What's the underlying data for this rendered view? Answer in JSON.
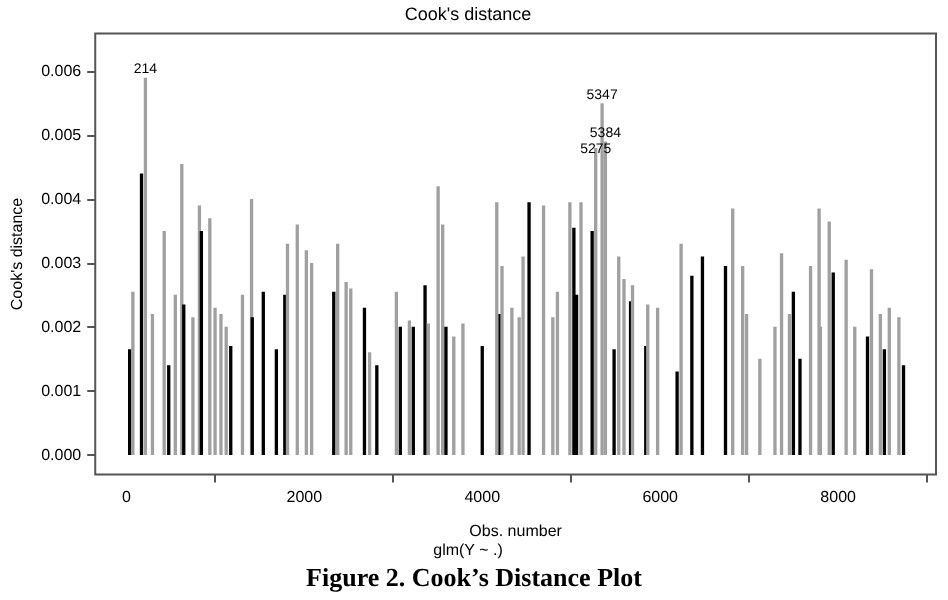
{
  "chart_data": {
    "type": "bar",
    "title": "Cook's distance",
    "subtitle": "glm(Y ~ .)",
    "xlabel": "Obs. number",
    "ylabel": "Cook's distance",
    "x": [
      37,
      73,
      170,
      214,
      293,
      425,
      476,
      550,
      623,
      645,
      748,
      821,
      843,
      938,
      997,
      1063,
      1122,
      1173,
      1305,
      1407,
      1415,
      1539,
      1686,
      1781,
      1811,
      1921,
      2023,
      2082,
      2331,
      2375,
      2470,
      2522,
      2676,
      2734,
      2815,
      3035,
      3079,
      3181,
      3225,
      3357,
      3394,
      3504,
      3555,
      3592,
      3680,
      3783,
      4000,
      4163,
      4200,
      4222,
      4333,
      4415,
      4459,
      4526,
      4689,
      4793,
      4845,
      4985,
      5030,
      5060,
      5110,
      5235,
      5275,
      5347,
      5384,
      5482,
      5534,
      5593,
      5667,
      5689,
      5838,
      5860,
      5971,
      6190,
      6235,
      6356,
      6475,
      6734,
      6815,
      6927,
      6971,
      7120,
      7290,
      7364,
      7453,
      7497,
      7571,
      7690,
      7786,
      7801,
      7900,
      7945,
      8090,
      8187,
      8330,
      8375,
      8475,
      8520,
      8575,
      8683,
      8735
    ],
    "values": [
      0.00165,
      0.00255,
      0.0044,
      0.0059,
      0.0022,
      0.0035,
      0.0014,
      0.0025,
      0.00455,
      0.00235,
      0.00215,
      0.0039,
      0.0035,
      0.0037,
      0.0023,
      0.0022,
      0.002,
      0.0017,
      0.0025,
      0.004,
      0.00215,
      0.00255,
      0.00165,
      0.0025,
      0.0033,
      0.0036,
      0.0032,
      0.003,
      0.00255,
      0.0033,
      0.0027,
      0.0026,
      0.0023,
      0.0016,
      0.0014,
      0.00255,
      0.002,
      0.0021,
      0.002,
      0.00265,
      0.00205,
      0.0042,
      0.0036,
      0.002,
      0.00185,
      0.00205,
      0.0017,
      0.00395,
      0.0022,
      0.00295,
      0.0023,
      0.00215,
      0.0031,
      0.00395,
      0.0039,
      0.00215,
      0.00255,
      0.00395,
      0.00355,
      0.0025,
      0.00395,
      0.0035,
      0.0048,
      0.0055,
      0.0049,
      0.00165,
      0.0031,
      0.00275,
      0.0024,
      0.00265,
      0.0017,
      0.00235,
      0.0023,
      0.0013,
      0.0033,
      0.0028,
      0.0031,
      0.00295,
      0.00385,
      0.00295,
      0.0022,
      0.0015,
      0.002,
      0.00315,
      0.0022,
      0.00255,
      0.0015,
      0.00295,
      0.00385,
      0.002,
      0.00365,
      0.00285,
      0.00305,
      0.002,
      0.00185,
      0.0029,
      0.0022,
      0.00165,
      0.0023,
      0.00215,
      0.0014
    ],
    "colors": [
      "#000000",
      "#a0a0a0",
      "#000000",
      "#a0a0a0",
      "#a0a0a0",
      "#a0a0a0",
      "#000000",
      "#a0a0a0",
      "#a0a0a0",
      "#000000",
      "#a0a0a0",
      "#a0a0a0",
      "#000000",
      "#a0a0a0",
      "#a0a0a0",
      "#a0a0a0",
      "#a0a0a0",
      "#000000",
      "#a0a0a0",
      "#a0a0a0",
      "#000000",
      "#000000",
      "#000000",
      "#000000",
      "#a0a0a0",
      "#a0a0a0",
      "#a0a0a0",
      "#a0a0a0",
      "#000000",
      "#a0a0a0",
      "#a0a0a0",
      "#a0a0a0",
      "#000000",
      "#a0a0a0",
      "#000000",
      "#a0a0a0",
      "#000000",
      "#a0a0a0",
      "#000000",
      "#000000",
      "#a0a0a0",
      "#a0a0a0",
      "#a0a0a0",
      "#000000",
      "#a0a0a0",
      "#a0a0a0",
      "#000000",
      "#a0a0a0",
      "#000000",
      "#a0a0a0",
      "#a0a0a0",
      "#a0a0a0",
      "#a0a0a0",
      "#000000",
      "#a0a0a0",
      "#a0a0a0",
      "#a0a0a0",
      "#a0a0a0",
      "#000000",
      "#000000",
      "#a0a0a0",
      "#000000",
      "#a0a0a0",
      "#a0a0a0",
      "#a0a0a0",
      "#000000",
      "#a0a0a0",
      "#a0a0a0",
      "#000000",
      "#a0a0a0",
      "#000000",
      "#a0a0a0",
      "#a0a0a0",
      "#000000",
      "#a0a0a0",
      "#000000",
      "#000000",
      "#000000",
      "#a0a0a0",
      "#a0a0a0",
      "#a0a0a0",
      "#a0a0a0",
      "#a0a0a0",
      "#a0a0a0",
      "#a0a0a0",
      "#000000",
      "#000000",
      "#a0a0a0",
      "#a0a0a0",
      "#a0a0a0",
      "#a0a0a0",
      "#000000",
      "#a0a0a0",
      "#a0a0a0",
      "#000000",
      "#a0a0a0",
      "#a0a0a0",
      "#000000",
      "#a0a0a0",
      "#a0a0a0",
      "#000000"
    ],
    "xlim": [
      -350,
      9100
    ],
    "xticks": [
      0,
      2000,
      4000,
      6000,
      8000
    ],
    "ylim": [
      -0.0003,
      0.0066
    ],
    "yticks": [
      {
        "value": 0,
        "label": "0.000"
      },
      {
        "value": 0.001,
        "label": "0.001"
      },
      {
        "value": 0.002,
        "label": "0.002"
      },
      {
        "value": 0.003,
        "label": "0.003"
      },
      {
        "value": 0.004,
        "label": "0.004"
      },
      {
        "value": 0.005,
        "label": "0.005"
      },
      {
        "value": 0.006,
        "label": "0.006"
      }
    ],
    "grid": false,
    "legend": false,
    "annotations": [
      {
        "text": "214",
        "x": 214,
        "y": 0.0059
      },
      {
        "text": "5347",
        "x": 5347,
        "y": 0.0055
      },
      {
        "text": "5384",
        "x": 5384,
        "y": 0.0049
      },
      {
        "text": "5275",
        "x": 5275,
        "y": 0.0048
      },
      "Figure 2. Cook’s Distance Plot"
    ]
  }
}
